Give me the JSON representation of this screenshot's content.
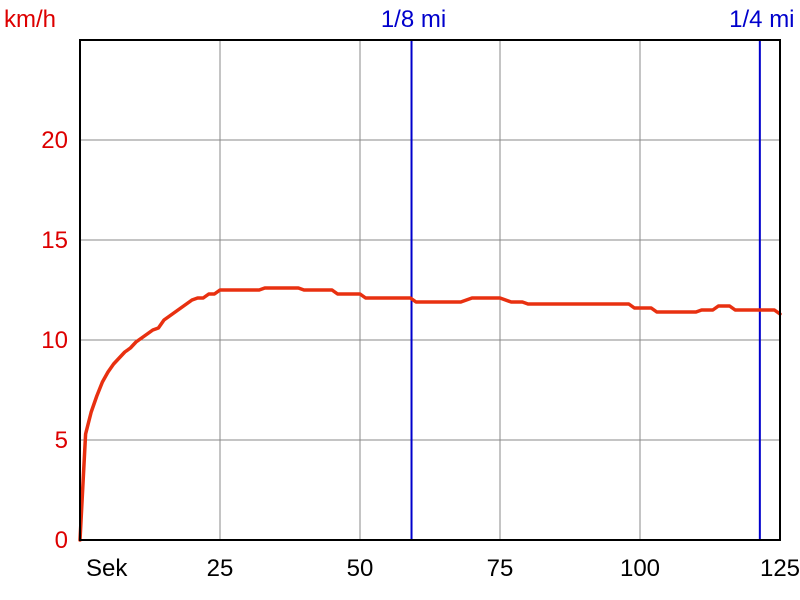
{
  "chart_data": {
    "type": "line",
    "xlabel": "Sek",
    "ylabel": "km/h",
    "xlim": [
      0,
      125
    ],
    "ylim": [
      0,
      25
    ],
    "x_ticks": [
      25,
      50,
      75,
      100,
      125
    ],
    "y_ticks": [
      0,
      5,
      10,
      15,
      20
    ],
    "grid": true,
    "colors": {
      "series": "#e83010",
      "axis_text": "#dd0000",
      "markers": "#0000cc",
      "grid": "#888888",
      "frame": "#000000"
    },
    "markers": [
      {
        "label": "1/8 mi",
        "x": 59.2
      },
      {
        "label": "1/4 mi",
        "x": 121.4
      }
    ],
    "series": [
      {
        "x": [
          0,
          1,
          2,
          3,
          4,
          5,
          6,
          7,
          8,
          9,
          10,
          11,
          12,
          13,
          14,
          15,
          16,
          18,
          20,
          21,
          22,
          23,
          24,
          25,
          27,
          30,
          32,
          33,
          36,
          38,
          39,
          40,
          42,
          44,
          45,
          46,
          48,
          50,
          51,
          53,
          55,
          57,
          59,
          60,
          62,
          65,
          68,
          70,
          72,
          75,
          77,
          79,
          80,
          85,
          90,
          95,
          98,
          99,
          102,
          103,
          105,
          108,
          110,
          111,
          113,
          114,
          116,
          117,
          119,
          121,
          123,
          124,
          125
        ],
        "y": [
          0,
          5.3,
          6.4,
          7.2,
          7.9,
          8.4,
          8.8,
          9.1,
          9.4,
          9.6,
          9.9,
          10.1,
          10.3,
          10.5,
          10.6,
          11.0,
          11.2,
          11.6,
          12.0,
          12.1,
          12.1,
          12.3,
          12.3,
          12.5,
          12.5,
          12.5,
          12.5,
          12.6,
          12.6,
          12.6,
          12.6,
          12.5,
          12.5,
          12.5,
          12.5,
          12.3,
          12.3,
          12.3,
          12.1,
          12.1,
          12.1,
          12.1,
          12.1,
          11.9,
          11.9,
          11.9,
          11.9,
          12.1,
          12.1,
          12.1,
          11.9,
          11.9,
          11.8,
          11.8,
          11.8,
          11.8,
          11.8,
          11.6,
          11.6,
          11.4,
          11.4,
          11.4,
          11.4,
          11.5,
          11.5,
          11.7,
          11.7,
          11.5,
          11.5,
          11.5,
          11.5,
          11.5,
          11.3
        ]
      }
    ]
  }
}
